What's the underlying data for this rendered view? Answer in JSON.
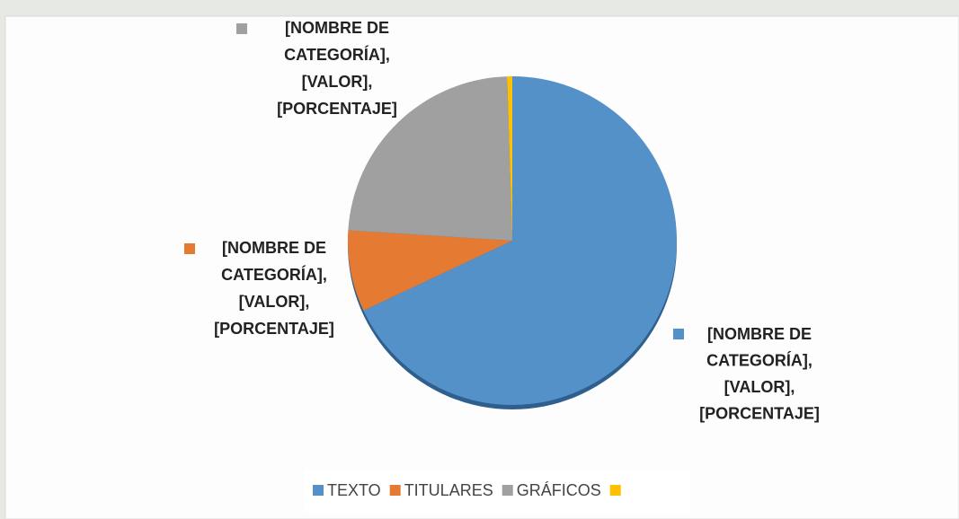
{
  "chart_data": {
    "type": "pie",
    "categories": [
      "TEXTO",
      "TITULARES",
      "GRÁFICOS",
      null
    ],
    "values": [
      68,
      8,
      23.5,
      0.5
    ],
    "colors": [
      "#5591c9",
      "#e57a33",
      "#a0a0a0",
      "#ffc000"
    ],
    "annotations": [
      [
        "[NOMBRE DE",
        "CATEGORÍA],",
        "[VALOR],",
        "[PORCENTAJE]"
      ],
      [
        "[NOMBRE DE",
        "CATEGORÍA],",
        "[VALOR],",
        "[PORCENTAJE]"
      ],
      [
        "[NOMBRE DE",
        "CATEGORÍA],",
        "[VALOR],",
        "[PORCENTAJE]"
      ]
    ],
    "legend": "bottom"
  }
}
